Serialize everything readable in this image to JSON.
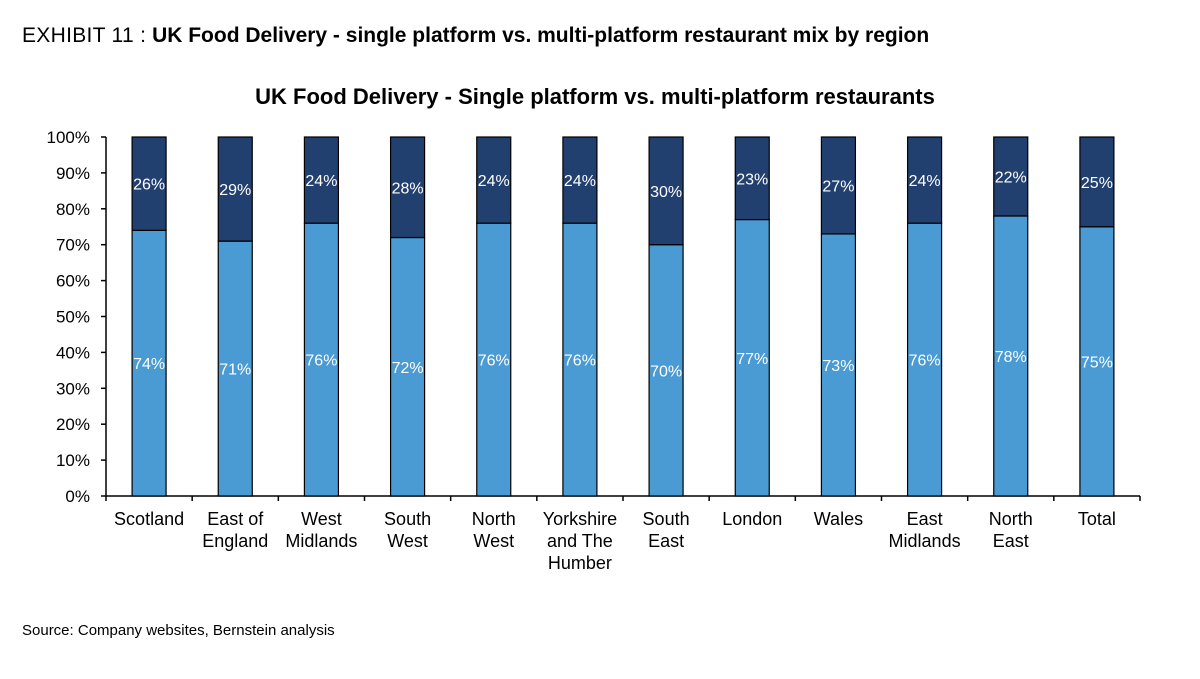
{
  "exhibit": {
    "prefix": "EXHIBIT 11 :",
    "title": "UK Food Delivery - single platform vs. multi-platform restaurant mix by region"
  },
  "source": "Source: Company websites, Bernstein analysis",
  "colors": {
    "single": "#4a9ad3",
    "multi": "#22406f",
    "outline": "#000000"
  },
  "chart_data": {
    "type": "bar",
    "stacked": true,
    "title": "UK Food Delivery - Single platform vs. multi-platform restaurants",
    "xlabel": "",
    "ylabel": "",
    "ylim": [
      0,
      100
    ],
    "yticks": [
      "0%",
      "10%",
      "20%",
      "30%",
      "40%",
      "50%",
      "60%",
      "70%",
      "80%",
      "90%",
      "100%"
    ],
    "grid": false,
    "legend": "none",
    "categories": [
      "Scotland",
      "East of\nEngland",
      "West\nMidlands",
      "South\nWest",
      "North\nWest",
      "Yorkshire\nand The\nHumber",
      "South\nEast",
      "London",
      "Wales",
      "East\nMidlands",
      "North\nEast",
      "Total"
    ],
    "series": [
      {
        "values": [
          74,
          71,
          76,
          72,
          76,
          76,
          70,
          77,
          73,
          76,
          78,
          75
        ],
        "labels": [
          "74%",
          "71%",
          "76%",
          "72%",
          "76%",
          "76%",
          "70%",
          "77%",
          "73%",
          "76%",
          "78%",
          "75%"
        ]
      },
      {
        "values": [
          26,
          29,
          24,
          28,
          24,
          24,
          30,
          23,
          27,
          24,
          22,
          25
        ],
        "labels": [
          "26%",
          "29%",
          "24%",
          "28%",
          "24%",
          "24%",
          "30%",
          "23%",
          "27%",
          "24%",
          "22%",
          "25%"
        ]
      }
    ]
  }
}
